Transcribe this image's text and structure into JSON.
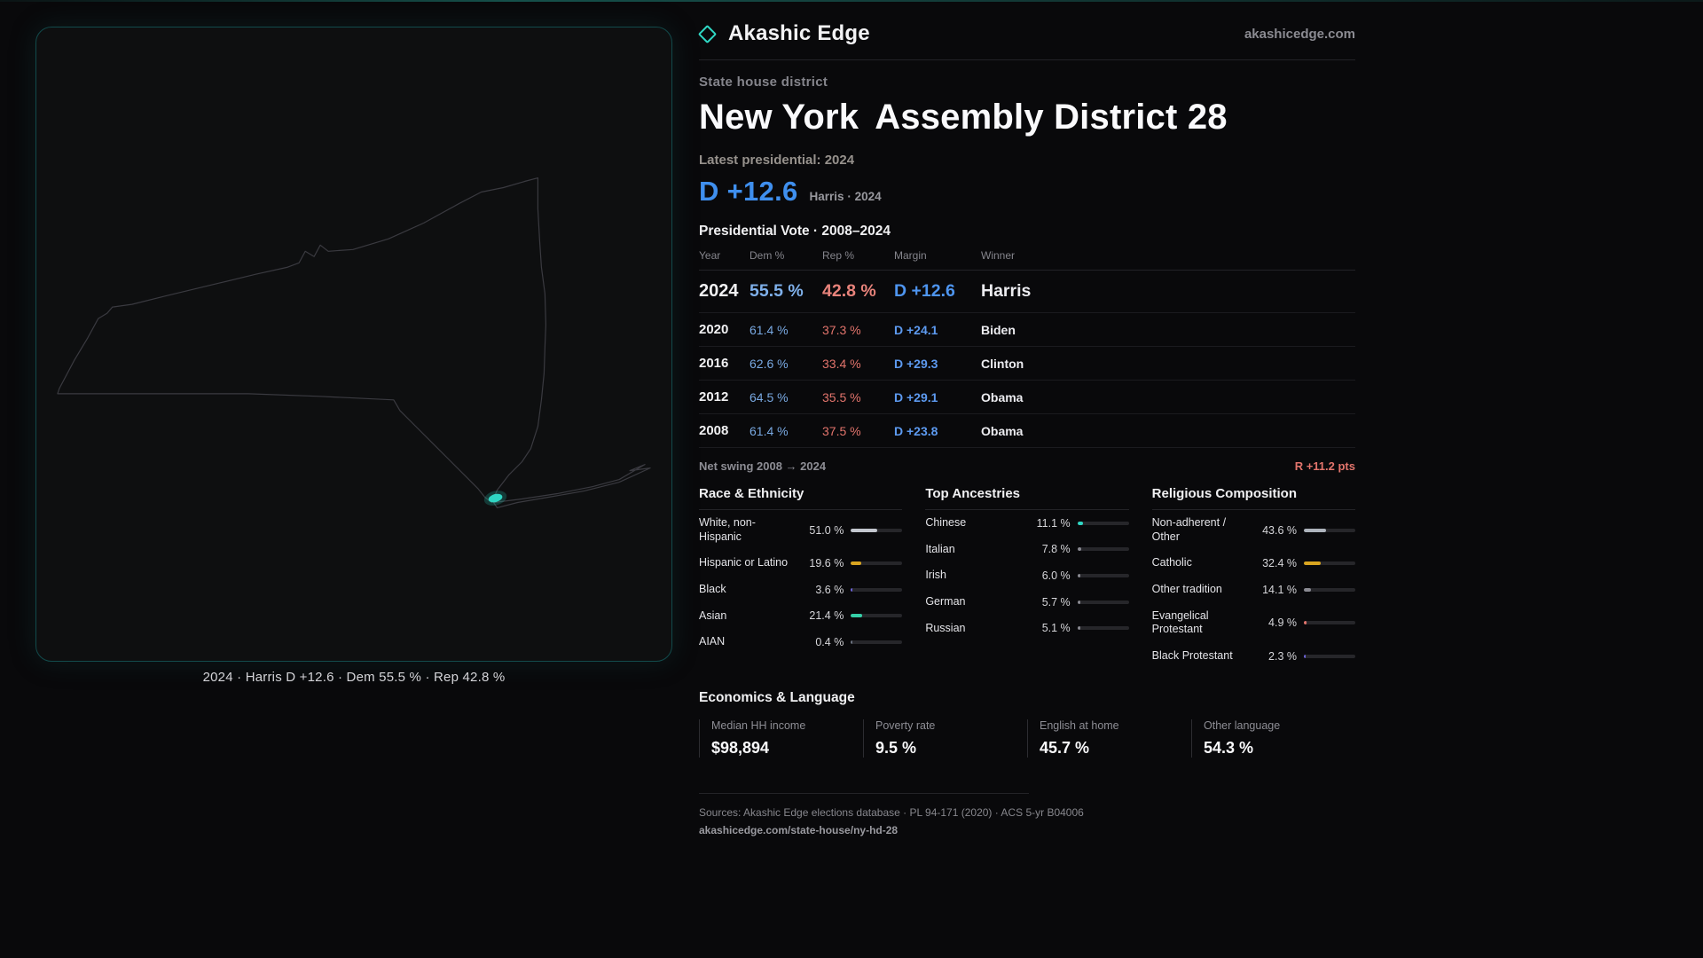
{
  "brand": {
    "name": "Akashic Edge",
    "domain": "akashicedge.com",
    "accent_teal": "#2fd6c3"
  },
  "page": {
    "kicker": "State house district",
    "title_state": "New York",
    "title_district": "Assembly District 28",
    "latest_label": "Latest presidential: 2024",
    "headline_margin": "D +12.6",
    "headline_sub": "Harris · 2024",
    "dem_color": "#3f8fee",
    "rep_color": "#e2746c"
  },
  "map": {
    "caption": "2024 · Harris D +12.6 · Dem 55.5 % · Rep 42.8 %",
    "state": "New York",
    "district_color": "#2fd6c3",
    "outline_color": "#3a3a40"
  },
  "elections": {
    "section_title": "Presidential Vote · 2008–2024",
    "columns": [
      "Year",
      "Dem %",
      "Rep %",
      "Margin",
      "Winner"
    ],
    "rows": [
      {
        "year": "2024",
        "dem": "55.5 %",
        "rep": "42.8 %",
        "margin": "D +12.6",
        "winner": "Harris"
      },
      {
        "year": "2020",
        "dem": "61.4 %",
        "rep": "37.3 %",
        "margin": "D +24.1",
        "winner": "Biden"
      },
      {
        "year": "2016",
        "dem": "62.6 %",
        "rep": "33.4 %",
        "margin": "D +29.3",
        "winner": "Clinton"
      },
      {
        "year": "2012",
        "dem": "64.5 %",
        "rep": "35.5 %",
        "margin": "D +29.1",
        "winner": "Obama"
      },
      {
        "year": "2008",
        "dem": "61.4 %",
        "rep": "37.5 %",
        "margin": "D +23.8",
        "winner": "Obama"
      }
    ],
    "net_swing_label": "Net swing 2008 → 2024",
    "net_swing_value": "R +11.2 pts"
  },
  "demographics": {
    "race": {
      "title": "Race & Ethnicity",
      "rows": [
        {
          "label": "White, non-Hispanic",
          "value": "51.0 %",
          "pct": 51.0,
          "color": "#c3c7cf"
        },
        {
          "label": "Hispanic or Latino",
          "value": "19.6 %",
          "pct": 19.6,
          "color": "#d9a520"
        },
        {
          "label": "Black",
          "value": "3.6 %",
          "pct": 3.6,
          "color": "#6c63d9"
        },
        {
          "label": "Asian",
          "value": "21.4 %",
          "pct": 21.4,
          "color": "#35d0a8"
        },
        {
          "label": "AIAN",
          "value": "0.4 %",
          "pct": 0.4,
          "color": "#6b7280"
        }
      ]
    },
    "ancestries": {
      "title": "Top Ancestries",
      "rows": [
        {
          "label": "Chinese",
          "value": "11.1 %",
          "pct": 11.1,
          "color": "#2fd6c3"
        },
        {
          "label": "Italian",
          "value": "7.8 %",
          "pct": 7.8,
          "color": "#8a8a92"
        },
        {
          "label": "Irish",
          "value": "6.0 %",
          "pct": 6.0,
          "color": "#8a8a92"
        },
        {
          "label": "German",
          "value": "5.7 %",
          "pct": 5.7,
          "color": "#8a8a92"
        },
        {
          "label": "Russian",
          "value": "5.1 %",
          "pct": 5.1,
          "color": "#8a8a92"
        }
      ]
    },
    "religion": {
      "title": "Religious Composition",
      "rows": [
        {
          "label": "Non-adherent / Other",
          "value": "43.6 %",
          "pct": 43.6,
          "color": "#aeb4bd"
        },
        {
          "label": "Catholic",
          "value": "32.4 %",
          "pct": 32.4,
          "color": "#d9a520"
        },
        {
          "label": "Other tradition",
          "value": "14.1 %",
          "pct": 14.1,
          "color": "#8a8a92"
        },
        {
          "label": "Evangelical Protestant",
          "value": "4.9 %",
          "pct": 4.9,
          "color": "#e2746c"
        },
        {
          "label": "Black Protestant",
          "value": "2.3 %",
          "pct": 2.3,
          "color": "#6c63d9"
        }
      ]
    }
  },
  "economics": {
    "title": "Economics & Language",
    "stats": [
      {
        "label": "Median HH income",
        "value": "$98,894"
      },
      {
        "label": "Poverty rate",
        "value": "9.5 %"
      },
      {
        "label": "English at home",
        "value": "45.7 %"
      },
      {
        "label": "Other language",
        "value": "54.3 %"
      }
    ]
  },
  "footer": {
    "sources": "Sources: Akashic Edge elections database · PL 94-171 (2020) · ACS 5-yr B04006",
    "permalink": "akashicedge.com/state-house/ny-hd-28"
  }
}
